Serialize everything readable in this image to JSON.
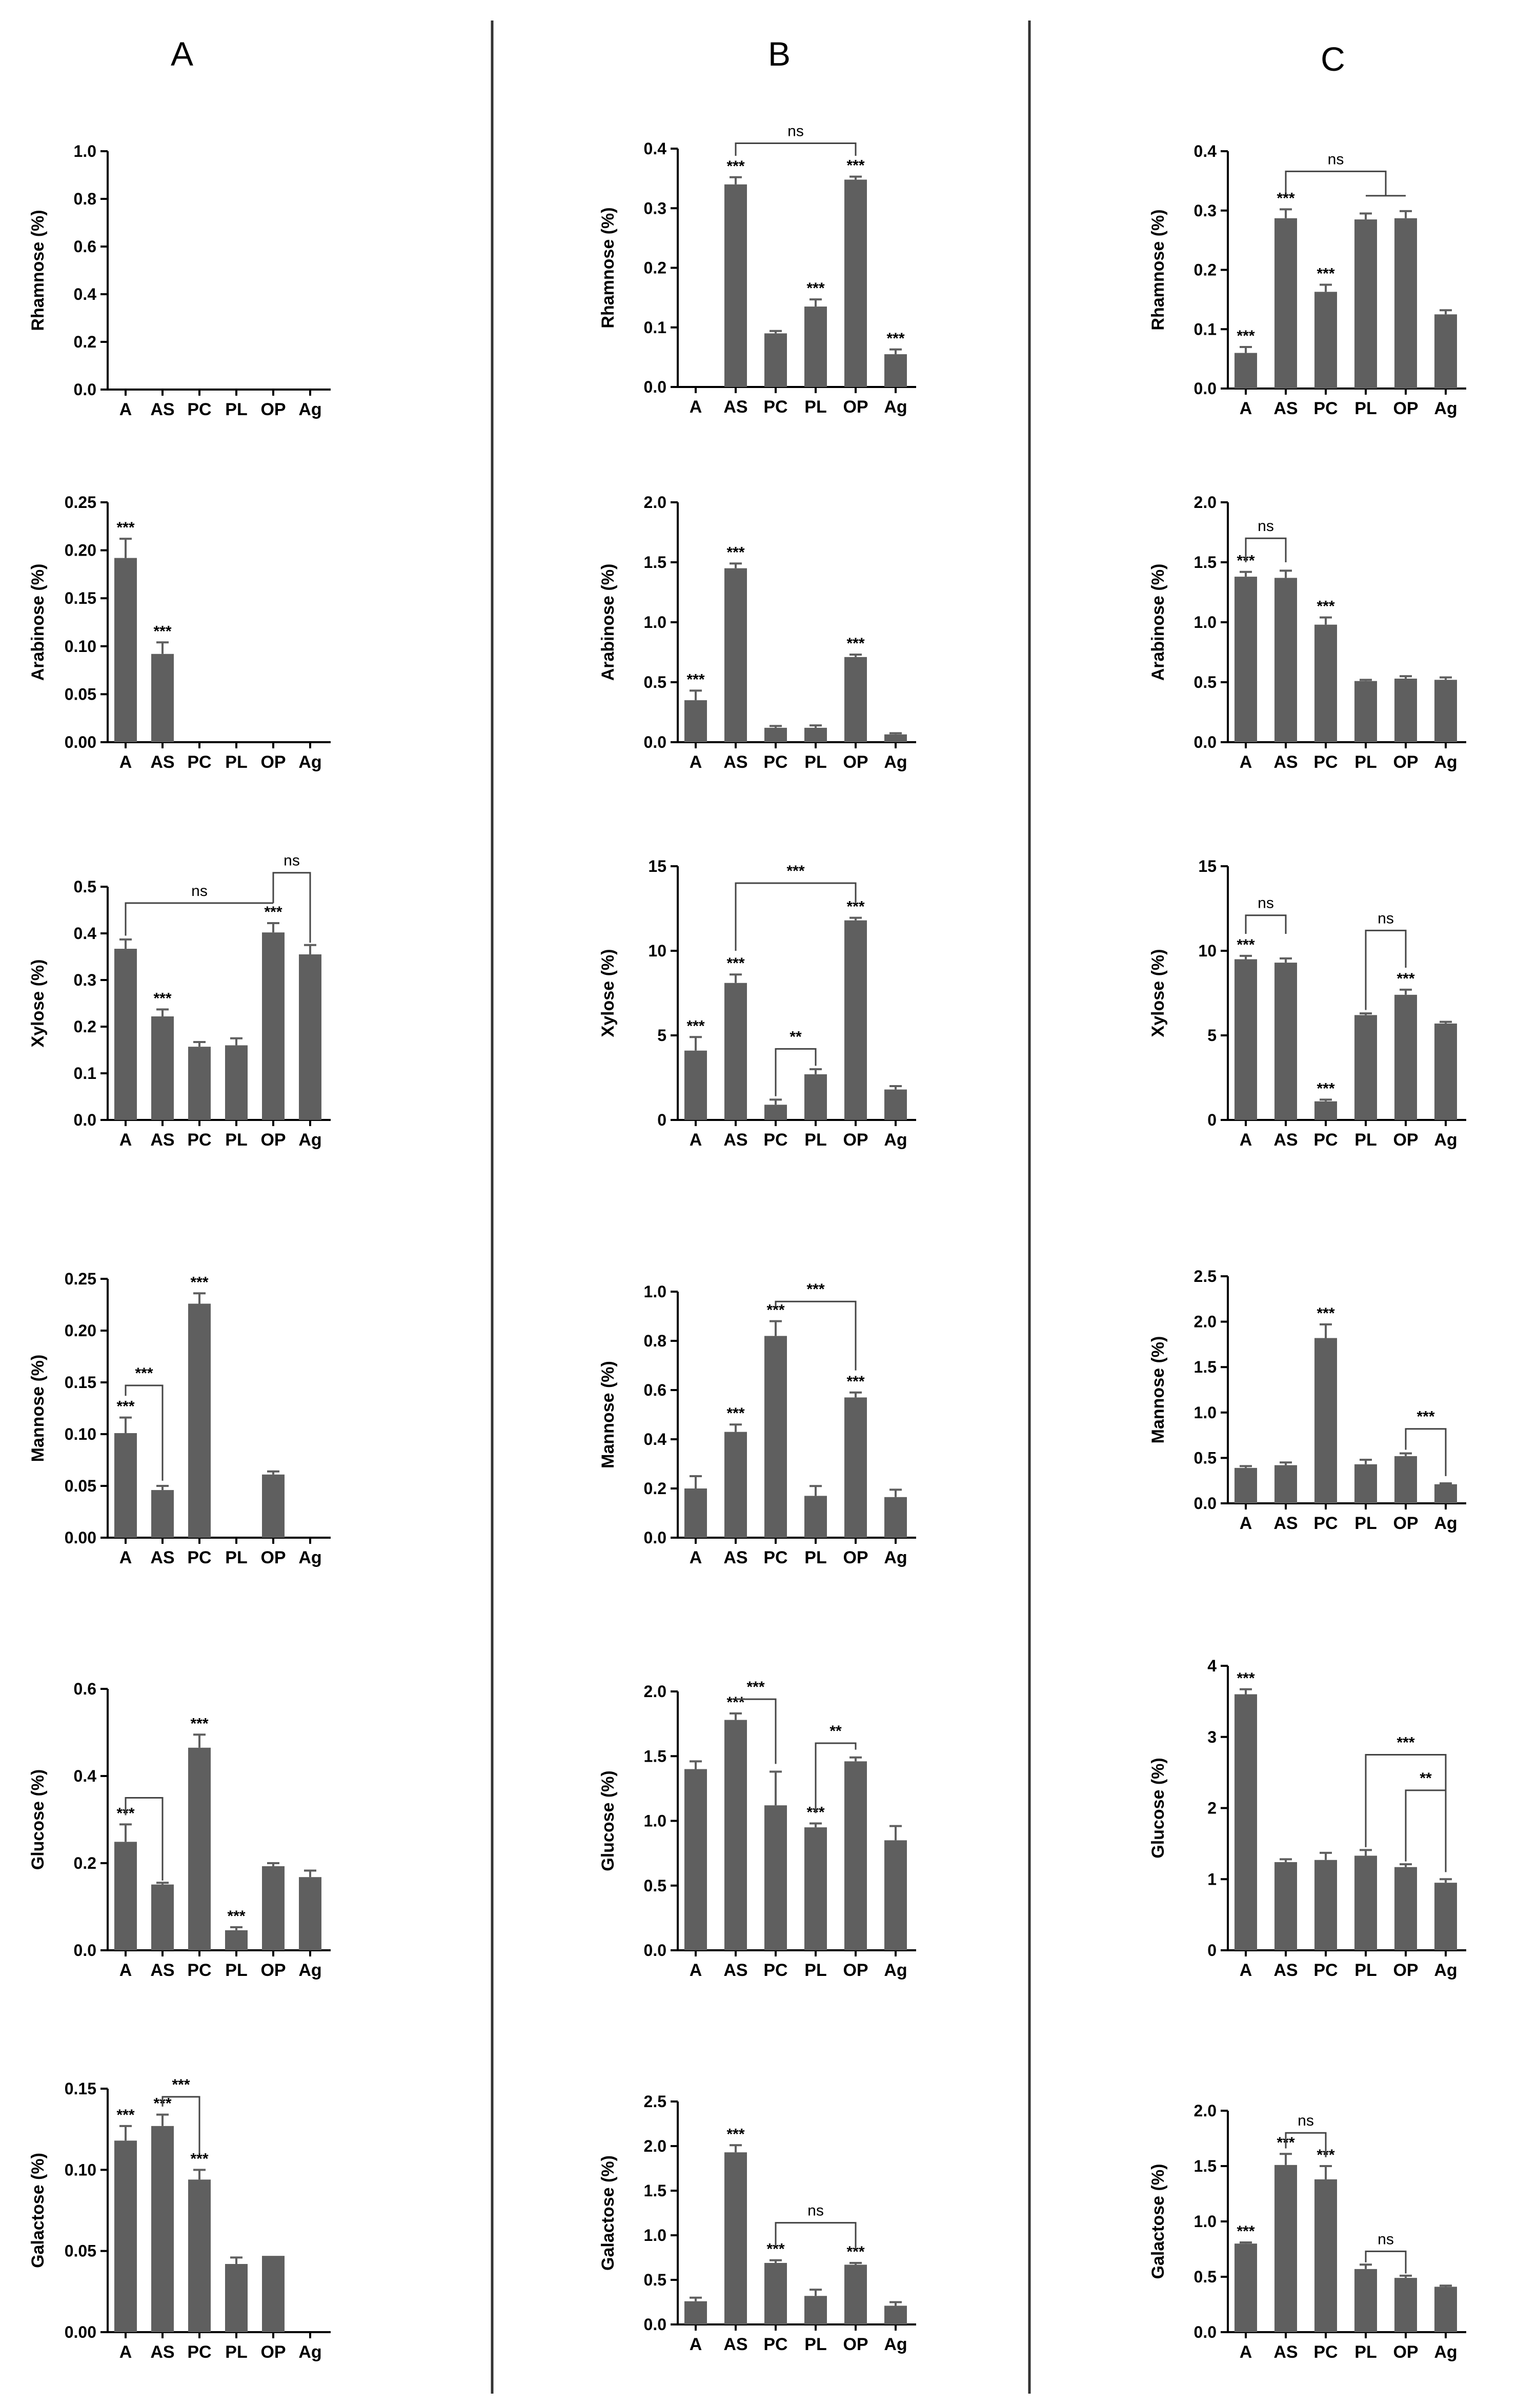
{
  "colors": {
    "bar": "#5f5f5f",
    "axis": "#000000",
    "divider": "#333333"
  },
  "column_titles": [
    "A",
    "B",
    "C"
  ],
  "chart_data": [
    {
      "panel": "A",
      "type": "bar",
      "ylabel": "Rhamnose (%)",
      "categories": [
        "A",
        "AS",
        "PC",
        "PL",
        "OP",
        "Ag"
      ],
      "ylim": [
        0,
        1.0
      ],
      "yticks": [
        "0.0",
        "0.2",
        "0.4",
        "0.6",
        "0.8",
        "1.0"
      ],
      "values": [
        0,
        0,
        0,
        0,
        0,
        0
      ],
      "errors": [
        0,
        0,
        0,
        0,
        0,
        0
      ],
      "stars": [
        "",
        "",
        "",
        "",
        "",
        ""
      ],
      "brackets": []
    },
    {
      "panel": "B",
      "type": "bar",
      "ylabel": "Rhamnose (%)",
      "categories": [
        "A",
        "AS",
        "PC",
        "PL",
        "OP",
        "Ag"
      ],
      "ylim": [
        0,
        0.4
      ],
      "yticks": [
        "0.0",
        "0.1",
        "0.2",
        "0.3",
        "0.4"
      ],
      "values": [
        0,
        0.34,
        0.09,
        0.135,
        0.348,
        0.055
      ],
      "errors": [
        0,
        0.012,
        0.004,
        0.012,
        0.005,
        0.008
      ],
      "stars": [
        "",
        "***",
        "",
        "***",
        "***",
        "***"
      ],
      "brackets": [
        {
          "from": 1,
          "to": 4,
          "label": "ns",
          "level": 0.409,
          "legs": [
            0.388,
            0.388
          ]
        }
      ]
    },
    {
      "panel": "C",
      "type": "bar",
      "ylabel": "Rhamnose (%)",
      "categories": [
        "A",
        "AS",
        "PC",
        "PL",
        "OP",
        "Ag"
      ],
      "ylim": [
        0,
        0.4
      ],
      "yticks": [
        "0.0",
        "0.1",
        "0.2",
        "0.3",
        "0.4"
      ],
      "values": [
        0.06,
        0.287,
        0.163,
        0.285,
        0.287,
        0.125
      ],
      "errors": [
        0.01,
        0.015,
        0.012,
        0.01,
        0.012,
        0.007
      ],
      "stars": [
        "***",
        "***",
        "***",
        "",
        "",
        ""
      ],
      "brackets": [
        {
          "from": 1,
          "to": 3.5,
          "label": "ns",
          "level": 0.366,
          "legs": [
            0.33,
            0.325
          ]
        },
        {
          "from": 3,
          "to": 4,
          "label": "",
          "level": 0.325,
          "legs": [
            0.325,
            0.325
          ]
        }
      ]
    },
    {
      "panel": "A",
      "type": "bar",
      "ylabel": "Arabinose (%)",
      "categories": [
        "A",
        "AS",
        "PC",
        "PL",
        "OP",
        "Ag"
      ],
      "ylim": [
        0,
        0.25
      ],
      "yticks": [
        "0.00",
        "0.05",
        "0.10",
        "0.15",
        "0.20",
        "0.25"
      ],
      "values": [
        0.192,
        0.092,
        0,
        0,
        0,
        0
      ],
      "errors": [
        0.02,
        0.012,
        0,
        0,
        0,
        0
      ],
      "stars": [
        "***",
        "***",
        "",
        "",
        "",
        ""
      ],
      "brackets": []
    },
    {
      "panel": "B",
      "type": "bar",
      "ylabel": "Arabinose (%)",
      "categories": [
        "A",
        "AS",
        "PC",
        "PL",
        "OP",
        "Ag"
      ],
      "ylim": [
        0,
        2.0
      ],
      "yticks": [
        "0.0",
        "0.5",
        "1.0",
        "1.5",
        "2.0"
      ],
      "values": [
        0.35,
        1.45,
        0.12,
        0.12,
        0.71,
        0.065
      ],
      "errors": [
        0.08,
        0.04,
        0.015,
        0.02,
        0.02,
        0.01
      ],
      "stars": [
        "***",
        "***",
        "",
        "",
        "***",
        ""
      ],
      "brackets": []
    },
    {
      "panel": "C",
      "type": "bar",
      "ylabel": "Arabinose (%)",
      "categories": [
        "A",
        "AS",
        "PC",
        "PL",
        "OP",
        "Ag"
      ],
      "ylim": [
        0,
        2.0
      ],
      "yticks": [
        "0.0",
        "0.5",
        "1.0",
        "1.5",
        "2.0"
      ],
      "values": [
        1.38,
        1.37,
        0.98,
        0.51,
        0.53,
        0.52
      ],
      "errors": [
        0.04,
        0.06,
        0.06,
        0.01,
        0.02,
        0.02
      ],
      "stars": [
        "***",
        "",
        "***",
        "",
        "",
        ""
      ],
      "brackets": [
        {
          "from": 0,
          "to": 1,
          "label": "ns",
          "level": 1.7,
          "legs": [
            1.5,
            1.5
          ]
        }
      ]
    },
    {
      "panel": "A",
      "type": "bar",
      "ylabel": "Xylose (%)",
      "categories": [
        "A",
        "AS",
        "PC",
        "PL",
        "OP",
        "Ag"
      ],
      "ylim": [
        0,
        0.5
      ],
      "yticks": [
        "0.0",
        "0.1",
        "0.2",
        "0.3",
        "0.4",
        "0.5"
      ],
      "values": [
        0.367,
        0.222,
        0.157,
        0.16,
        0.402,
        0.355
      ],
      "errors": [
        0.02,
        0.015,
        0.01,
        0.015,
        0.02,
        0.02
      ],
      "stars": [
        "",
        "***",
        "",
        "",
        "***",
        ""
      ],
      "brackets": [
        {
          "from": 0,
          "to": 4,
          "label": "ns",
          "level": 0.465,
          "legs": [
            0.395,
            0.465
          ]
        },
        {
          "from": 4,
          "to": 5,
          "label": "ns",
          "level": 0.53,
          "legs": [
            0.465,
            0.38
          ]
        }
      ]
    },
    {
      "panel": "B",
      "type": "bar",
      "ylabel": "Xylose (%)",
      "categories": [
        "A",
        "AS",
        "PC",
        "PL",
        "OP",
        "Ag"
      ],
      "ylim": [
        0,
        15
      ],
      "yticks": [
        "0",
        "5",
        "10",
        "15"
      ],
      "values": [
        4.1,
        8.1,
        0.9,
        2.7,
        11.8,
        1.8
      ],
      "errors": [
        0.8,
        0.5,
        0.3,
        0.3,
        0.15,
        0.2
      ],
      "stars": [
        "***",
        "***",
        "",
        "",
        "***",
        ""
      ],
      "brackets": [
        {
          "from": 1,
          "to": 4,
          "label": "***",
          "level": 14.0,
          "legs": [
            10.0,
            12.8
          ]
        },
        {
          "from": 2,
          "to": 3,
          "label": "**",
          "level": 4.2,
          "legs": [
            1.4,
            3.2
          ]
        }
      ]
    },
    {
      "panel": "C",
      "type": "bar",
      "ylabel": "Xylose (%)",
      "categories": [
        "A",
        "AS",
        "PC",
        "PL",
        "OP",
        "Ag"
      ],
      "ylim": [
        0,
        15
      ],
      "yticks": [
        "0",
        "5",
        "10",
        "15"
      ],
      "values": [
        9.5,
        9.3,
        1.1,
        6.2,
        7.4,
        5.7
      ],
      "errors": [
        0.2,
        0.25,
        0.1,
        0.1,
        0.3,
        0.1
      ],
      "stars": [
        "***",
        "",
        "***",
        "",
        "***",
        ""
      ],
      "brackets": [
        {
          "from": 0,
          "to": 1,
          "label": "ns",
          "level": 12.1,
          "legs": [
            11.0,
            11.0
          ]
        },
        {
          "from": 3,
          "to": 4,
          "label": "ns",
          "level": 11.2,
          "legs": [
            6.5,
            9.0
          ]
        }
      ]
    },
    {
      "panel": "A",
      "type": "bar",
      "ylabel": "Mannose (%)",
      "categories": [
        "A",
        "AS",
        "PC",
        "PL",
        "OP",
        "Ag"
      ],
      "ylim": [
        0,
        0.25
      ],
      "yticks": [
        "0.00",
        "0.05",
        "0.10",
        "0.15",
        "0.20",
        "0.25"
      ],
      "values": [
        0.101,
        0.046,
        0.226,
        0,
        0.061,
        0
      ],
      "errors": [
        0.015,
        0.004,
        0.01,
        0,
        0.003,
        0
      ],
      "stars": [
        "***",
        "",
        "***",
        "",
        "",
        ""
      ],
      "brackets": [
        {
          "from": 0,
          "to": 1,
          "label": "***",
          "level": 0.147,
          "legs": [
            0.137,
            0.055
          ]
        }
      ]
    },
    {
      "panel": "B",
      "type": "bar",
      "ylabel": "Mannose (%)",
      "categories": [
        "A",
        "AS",
        "PC",
        "PL",
        "OP",
        "Ag"
      ],
      "ylim": [
        0,
        1.0
      ],
      "yticks": [
        "0.0",
        "0.2",
        "0.4",
        "0.6",
        "0.8",
        "1.0"
      ],
      "values": [
        0.2,
        0.43,
        0.82,
        0.17,
        0.57,
        0.165
      ],
      "errors": [
        0.05,
        0.03,
        0.06,
        0.04,
        0.02,
        0.03
      ],
      "stars": [
        "",
        "***",
        "***",
        "",
        "***",
        ""
      ],
      "brackets": [
        {
          "from": 2,
          "to": 4,
          "label": "***",
          "level": 0.96,
          "legs": [
            0.94,
            0.68
          ]
        }
      ]
    },
    {
      "panel": "C",
      "type": "bar",
      "ylabel": "Mannose (%)",
      "categories": [
        "A",
        "AS",
        "PC",
        "PL",
        "OP",
        "Ag"
      ],
      "ylim": [
        0,
        2.5
      ],
      "yticks": [
        "0.0",
        "0.5",
        "1.0",
        "1.5",
        "2.0",
        "2.5"
      ],
      "values": [
        0.39,
        0.42,
        1.82,
        0.43,
        0.52,
        0.21
      ],
      "errors": [
        0.02,
        0.03,
        0.15,
        0.05,
        0.03,
        0.01
      ],
      "stars": [
        "",
        "",
        "***",
        "",
        "",
        ""
      ],
      "brackets": [
        {
          "from": 4,
          "to": 5,
          "label": "***",
          "level": 0.82,
          "legs": [
            0.59,
            0.3
          ]
        }
      ]
    },
    {
      "panel": "A",
      "type": "bar",
      "ylabel": "Glucose (%)",
      "categories": [
        "A",
        "AS",
        "PC",
        "PL",
        "OP",
        "Ag"
      ],
      "ylim": [
        0,
        0.6
      ],
      "yticks": [
        "0.0",
        "0.2",
        "0.4",
        "0.6"
      ],
      "values": [
        0.249,
        0.151,
        0.465,
        0.046,
        0.193,
        0.168
      ],
      "errors": [
        0.04,
        0.004,
        0.03,
        0.007,
        0.007,
        0.015
      ],
      "stars": [
        "***",
        "",
        "***",
        "***",
        "",
        ""
      ],
      "brackets": [
        {
          "from": 0,
          "to": 1,
          "label": "",
          "level": 0.35,
          "legs": [
            0.31,
            0.16
          ]
        }
      ]
    },
    {
      "panel": "B",
      "type": "bar",
      "ylabel": "Glucose (%)",
      "categories": [
        "A",
        "AS",
        "PC",
        "PL",
        "OP",
        "Ag"
      ],
      "ylim": [
        0,
        2.0
      ],
      "yticks": [
        "0.0",
        "0.5",
        "1.0",
        "1.5",
        "2.0"
      ],
      "values": [
        1.4,
        1.78,
        1.12,
        0.95,
        1.46,
        0.85
      ],
      "errors": [
        0.06,
        0.05,
        0.26,
        0.03,
        0.03,
        0.11
      ],
      "stars": [
        "",
        "***",
        "",
        "***",
        "",
        ""
      ],
      "brackets": [
        {
          "from": 1,
          "to": 2,
          "label": "***",
          "level": 1.94,
          "legs": [
            1.94,
            1.44
          ]
        },
        {
          "from": 3,
          "to": 4,
          "label": "**",
          "level": 1.6,
          "legs": [
            1.06,
            1.55
          ]
        }
      ]
    },
    {
      "panel": "C",
      "type": "bar",
      "ylabel": "Glucose (%)",
      "categories": [
        "A",
        "AS",
        "PC",
        "PL",
        "OP",
        "Ag"
      ],
      "ylim": [
        0,
        4
      ],
      "yticks": [
        "0",
        "1",
        "2",
        "3",
        "4"
      ],
      "values": [
        3.6,
        1.24,
        1.27,
        1.33,
        1.17,
        0.95
      ],
      "errors": [
        0.07,
        0.04,
        0.1,
        0.08,
        0.04,
        0.05
      ],
      "stars": [
        "***",
        "",
        "",
        "",
        "",
        ""
      ],
      "brackets": [
        {
          "from": 3,
          "to": 5,
          "label": "***",
          "level": 2.75,
          "legs": [
            1.45,
            1.1
          ]
        },
        {
          "from": 4,
          "to": 5,
          "label": "**",
          "level": 2.25,
          "legs": [
            1.25,
            1.1
          ]
        }
      ]
    },
    {
      "panel": "A",
      "type": "bar",
      "ylabel": "Galactose (%)",
      "categories": [
        "A",
        "AS",
        "PC",
        "PL",
        "OP",
        "Ag"
      ],
      "ylim": [
        0,
        0.15
      ],
      "yticks": [
        "0.00",
        "0.05",
        "0.10",
        "0.15"
      ],
      "values": [
        0.118,
        0.127,
        0.094,
        0.042,
        0.047,
        0
      ],
      "errors": [
        0.009,
        0.007,
        0.006,
        0.004,
        0,
        0
      ],
      "stars": [
        "***",
        "***",
        "***",
        "",
        "",
        ""
      ],
      "brackets": [
        {
          "from": 1,
          "to": 2,
          "label": "***",
          "level": 0.145,
          "legs": [
            0.139,
            0.11
          ]
        }
      ]
    },
    {
      "panel": "B",
      "type": "bar",
      "ylabel": "Galactose (%)",
      "categories": [
        "A",
        "AS",
        "PC",
        "PL",
        "OP",
        "Ag"
      ],
      "ylim": [
        0,
        2.5
      ],
      "yticks": [
        "0.0",
        "0.5",
        "1.0",
        "1.5",
        "2.0",
        "2.5"
      ],
      "values": [
        0.26,
        1.93,
        0.69,
        0.32,
        0.67,
        0.21
      ],
      "errors": [
        0.04,
        0.08,
        0.03,
        0.07,
        0.02,
        0.04
      ],
      "stars": [
        "",
        "***",
        "***",
        "",
        "***",
        ""
      ],
      "brackets": [
        {
          "from": 2,
          "to": 4,
          "label": "ns",
          "level": 1.14,
          "legs": [
            0.88,
            0.85
          ]
        }
      ]
    },
    {
      "panel": "C",
      "type": "bar",
      "ylabel": "Galactose (%)",
      "categories": [
        "A",
        "AS",
        "PC",
        "PL",
        "OP",
        "Ag"
      ],
      "ylim": [
        0,
        2.0
      ],
      "yticks": [
        "0.0",
        "0.5",
        "1.0",
        "1.5",
        "2.0"
      ],
      "values": [
        0.8,
        1.51,
        1.38,
        0.57,
        0.49,
        0.41
      ],
      "errors": [
        0.01,
        0.1,
        0.12,
        0.04,
        0.02,
        0.01
      ],
      "stars": [
        "***",
        "***",
        "***",
        "",
        "",
        ""
      ],
      "brackets": [
        {
          "from": 1,
          "to": 2,
          "label": "ns",
          "level": 1.8,
          "legs": [
            1.66,
            1.58
          ]
        },
        {
          "from": 3,
          "to": 4,
          "label": "ns",
          "level": 0.73,
          "legs": [
            0.63,
            0.53
          ]
        }
      ]
    }
  ]
}
